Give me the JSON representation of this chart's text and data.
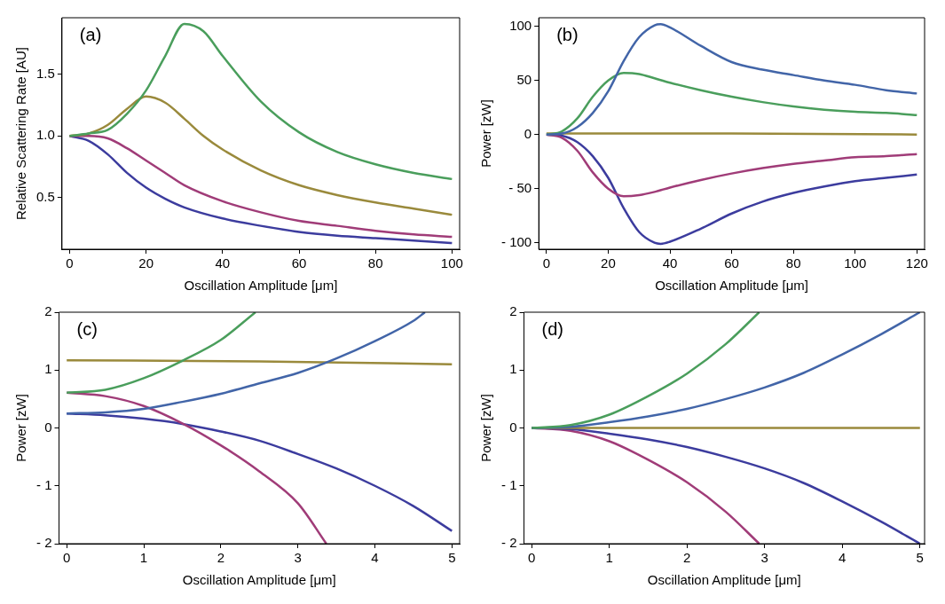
{
  "chart_data": [
    {
      "type": "line",
      "annotations": [
        "(a)"
      ],
      "xlabel": "Oscillation Amplitude [μm]",
      "ylabel": "Relative Scattering Rate [AU]",
      "marker": "none",
      "xlim": [
        -2,
        102
      ],
      "ylim": [
        0.08,
        1.96
      ],
      "xticks": [
        0,
        20,
        40,
        60,
        80,
        100
      ],
      "yticks": [
        0.5,
        {
          "value": 1,
          "label": "1.0"
        },
        1.5
      ],
      "series": [
        {
          "color": "#4a9e5c",
          "x": [
            0,
            5,
            10,
            15,
            20,
            25,
            30,
            35,
            40,
            50,
            60,
            70,
            80,
            90,
            100
          ],
          "values": [
            1,
            1.02,
            1.05,
            1.18,
            1.37,
            1.65,
            1.91,
            1.85,
            1.65,
            1.28,
            1.03,
            0.87,
            0.77,
            0.7,
            0.65
          ]
        },
        {
          "color": "#9a8a3c",
          "x": [
            0,
            5,
            10,
            15,
            20,
            25,
            30,
            35,
            40,
            50,
            60,
            70,
            80,
            90,
            100
          ],
          "values": [
            1,
            1.02,
            1.09,
            1.22,
            1.32,
            1.27,
            1.14,
            1.0,
            0.89,
            0.72,
            0.6,
            0.52,
            0.46,
            0.41,
            0.36
          ]
        },
        {
          "color": "#a03c78",
          "x": [
            0,
            5,
            10,
            15,
            20,
            25,
            30,
            40,
            50,
            60,
            70,
            80,
            90,
            100
          ],
          "values": [
            1,
            1.0,
            0.98,
            0.9,
            0.8,
            0.7,
            0.6,
            0.47,
            0.38,
            0.31,
            0.27,
            0.23,
            0.2,
            0.18
          ]
        },
        {
          "color": "#3c3c9e",
          "x": [
            0,
            5,
            10,
            15,
            20,
            25,
            30,
            40,
            50,
            60,
            70,
            80,
            90,
            100
          ],
          "values": [
            1,
            0.96,
            0.85,
            0.7,
            0.58,
            0.49,
            0.42,
            0.33,
            0.27,
            0.22,
            0.19,
            0.17,
            0.15,
            0.13
          ]
        }
      ]
    },
    {
      "type": "line",
      "annotations": [
        "(b)"
      ],
      "xlabel": "Oscillation Amplitude [μm]",
      "ylabel": "Power [zW]",
      "marker": "none",
      "xlim": [
        -2.5,
        122.5
      ],
      "ylim": [
        -106,
        108
      ],
      "xticks": [
        0,
        20,
        40,
        60,
        80,
        100,
        120
      ],
      "yticks": [
        {
          "value": -100,
          "label": "- 100"
        },
        {
          "value": -50,
          "label": "- 50"
        },
        0,
        50,
        100
      ],
      "series": [
        {
          "color": "#4265a8",
          "x": [
            0,
            5,
            10,
            15,
            20,
            25,
            30,
            35,
            37,
            40,
            50,
            60,
            70,
            80,
            90,
            100,
            110,
            120
          ],
          "values": [
            0,
            1,
            7,
            20,
            40,
            68,
            90,
            101,
            102,
            99,
            82,
            67,
            60,
            55,
            50,
            46,
            41,
            38
          ]
        },
        {
          "color": "#4a9e5c",
          "x": [
            0,
            5,
            10,
            15,
            20,
            25,
            30,
            35,
            40,
            50,
            60,
            70,
            80,
            90,
            100,
            110,
            120
          ],
          "values": [
            0,
            3,
            15,
            35,
            50,
            57,
            56,
            52,
            48,
            41,
            35,
            30,
            26,
            23,
            21,
            20,
            18
          ]
        },
        {
          "color": "#9a8a3c",
          "x": [
            0,
            60,
            120
          ],
          "values": [
            1,
            1,
            0
          ]
        },
        {
          "color": "#a03c78",
          "x": [
            0,
            5,
            10,
            15,
            20,
            25,
            30,
            35,
            40,
            50,
            60,
            70,
            80,
            90,
            100,
            110,
            120
          ],
          "values": [
            0,
            -3,
            -15,
            -35,
            -50,
            -57,
            -56,
            -53,
            -49,
            -42,
            -36,
            -31,
            -27,
            -24,
            -21,
            -20,
            -18
          ]
        },
        {
          "color": "#3c3c9e",
          "x": [
            0,
            5,
            10,
            15,
            20,
            25,
            30,
            35,
            37,
            40,
            50,
            60,
            70,
            80,
            90,
            100,
            110,
            120
          ],
          "values": [
            0,
            -1,
            -7,
            -20,
            -40,
            -68,
            -90,
            -100,
            -101,
            -99,
            -87,
            -73,
            -62,
            -54,
            -48,
            -43,
            -40,
            -37
          ]
        }
      ]
    },
    {
      "type": "line",
      "annotations": [
        "(c)"
      ],
      "xlabel": "Oscillation Amplitude [μm]",
      "ylabel": "Power [zW]",
      "marker": "none",
      "xlim": [
        -0.1,
        5.1
      ],
      "ylim": [
        -2,
        2
      ],
      "xticks": [
        0,
        1,
        2,
        3,
        4,
        5
      ],
      "yticks": [
        {
          "value": -2,
          "label": "- 2"
        },
        {
          "value": -1,
          "label": "- 1"
        },
        0,
        1,
        2
      ],
      "series": [
        {
          "color": "#4a9e5c",
          "x": [
            0,
            0.5,
            1,
            1.5,
            2,
            2.45
          ],
          "values": [
            0.61,
            0.66,
            0.86,
            1.16,
            1.52,
            2
          ]
        },
        {
          "color": "#4265a8",
          "x": [
            0,
            0.5,
            1,
            1.5,
            2,
            2.5,
            3,
            3.5,
            4,
            4.5,
            4.65
          ],
          "values": [
            0.25,
            0.27,
            0.33,
            0.45,
            0.59,
            0.77,
            0.95,
            1.2,
            1.5,
            1.85,
            2
          ]
        },
        {
          "color": "#9a8a3c",
          "x": [
            0,
            2.5,
            5
          ],
          "values": [
            1.17,
            1.15,
            1.1
          ]
        },
        {
          "color": "#a03c78",
          "x": [
            0,
            0.5,
            1,
            1.5,
            2,
            2.5,
            3,
            3.37
          ],
          "values": [
            0.61,
            0.55,
            0.38,
            0.08,
            -0.3,
            -0.75,
            -1.3,
            -2
          ]
        },
        {
          "color": "#3c3c9e",
          "x": [
            0,
            0.5,
            1,
            1.5,
            2,
            2.5,
            3,
            3.5,
            4,
            4.5,
            5
          ],
          "values": [
            0.25,
            0.22,
            0.16,
            0.07,
            -0.06,
            -0.22,
            -0.45,
            -0.7,
            -1.0,
            -1.35,
            -1.78
          ]
        }
      ]
    },
    {
      "type": "line",
      "annotations": [
        "(d)"
      ],
      "xlabel": "Oscillation Amplitude [μm]",
      "ylabel": "Power [zW]",
      "marker": "none",
      "xlim": [
        -0.1,
        5.06
      ],
      "ylim": [
        -2,
        2
      ],
      "xticks": [
        0,
        1,
        2,
        3,
        4,
        5
      ],
      "yticks": [
        {
          "value": -2,
          "label": "- 2"
        },
        {
          "value": -1,
          "label": "- 1"
        },
        0,
        1,
        2
      ],
      "series": [
        {
          "color": "#4a9e5c",
          "x": [
            0,
            0.5,
            1,
            1.5,
            2,
            2.5,
            2.93
          ],
          "values": [
            0,
            0.05,
            0.23,
            0.55,
            0.94,
            1.45,
            2
          ]
        },
        {
          "color": "#4265a8",
          "x": [
            0,
            0.5,
            1,
            1.5,
            2,
            2.5,
            3,
            3.5,
            4,
            4.5,
            5
          ],
          "values": [
            0,
            0.02,
            0.1,
            0.2,
            0.33,
            0.5,
            0.7,
            0.95,
            1.27,
            1.62,
            2
          ]
        },
        {
          "color": "#9a8a3c",
          "x": [
            0,
            5
          ],
          "values": [
            0,
            0
          ]
        },
        {
          "color": "#3c3c9e",
          "x": [
            0,
            0.5,
            1,
            1.5,
            2,
            2.5,
            3,
            3.5,
            4,
            4.5,
            5
          ],
          "values": [
            0,
            -0.02,
            -0.1,
            -0.2,
            -0.33,
            -0.5,
            -0.7,
            -0.95,
            -1.27,
            -1.62,
            -2
          ]
        },
        {
          "color": "#a03c78",
          "x": [
            0,
            0.5,
            1,
            1.5,
            2,
            2.5,
            2.93
          ],
          "values": [
            0,
            -0.05,
            -0.23,
            -0.55,
            -0.94,
            -1.45,
            -2
          ]
        }
      ]
    }
  ]
}
